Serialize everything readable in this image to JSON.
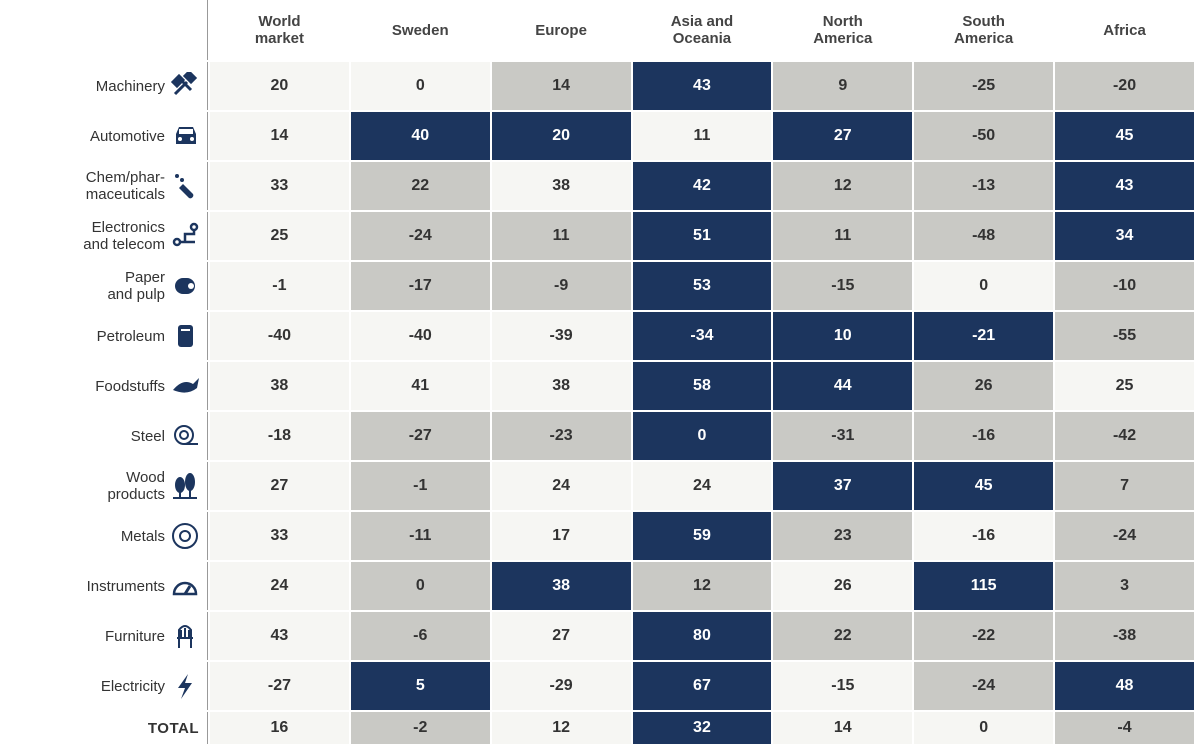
{
  "table": {
    "columns": [
      "World\nmarket",
      "Sweden",
      "Europe",
      "Asia and\nOceania",
      "North\nAmerica",
      "South\nAmerica",
      "Africa"
    ],
    "rows": [
      {
        "label": "Machinery",
        "values": [
          20,
          0,
          14,
          43,
          9,
          -25,
          -20
        ]
      },
      {
        "label": "Automotive",
        "values": [
          14,
          40,
          20,
          11,
          27,
          -50,
          45
        ]
      },
      {
        "label": "Chem/phar-\nmaceuticals",
        "values": [
          33,
          22,
          38,
          42,
          12,
          -13,
          43
        ]
      },
      {
        "label": "Electronics\nand telecom",
        "values": [
          25,
          -24,
          11,
          51,
          11,
          -48,
          34
        ]
      },
      {
        "label": "Paper\nand pulp",
        "values": [
          -1,
          -17,
          -9,
          53,
          -15,
          0,
          -10
        ]
      },
      {
        "label": "Petroleum",
        "values": [
          -40,
          -40,
          -39,
          -34,
          10,
          -21,
          -55
        ]
      },
      {
        "label": "Foodstuffs",
        "values": [
          38,
          41,
          38,
          58,
          44,
          26,
          25
        ]
      },
      {
        "label": "Steel",
        "values": [
          -18,
          -27,
          -23,
          0,
          -31,
          -16,
          -42
        ]
      },
      {
        "label": "Wood\nproducts",
        "values": [
          27,
          -1,
          24,
          24,
          37,
          45,
          7
        ]
      },
      {
        "label": "Metals",
        "values": [
          33,
          -11,
          17,
          59,
          23,
          -16,
          -24
        ]
      },
      {
        "label": "Instruments",
        "values": [
          24,
          0,
          38,
          12,
          26,
          115,
          3
        ]
      },
      {
        "label": "Furniture",
        "values": [
          43,
          -6,
          27,
          80,
          22,
          -22,
          -38
        ]
      },
      {
        "label": "Electricity",
        "values": [
          -27,
          5,
          -29,
          67,
          -15,
          -24,
          48
        ]
      },
      {
        "label": "TOTAL",
        "values": [
          16,
          -2,
          12,
          32,
          14,
          0,
          -4
        ]
      }
    ],
    "cell_colors": [
      [
        "#f6f6f3",
        "#f6f6f3",
        "#c9c9c5",
        "#1c355e",
        "#c9c9c5",
        "#c9c9c5",
        "#c9c9c5"
      ],
      [
        "#f6f6f3",
        "#1c355e",
        "#1c355e",
        "#f6f6f3",
        "#1c355e",
        "#c9c9c5",
        "#1c355e"
      ],
      [
        "#f6f6f3",
        "#c9c9c5",
        "#f6f6f3",
        "#1c355e",
        "#c9c9c5",
        "#c9c9c5",
        "#1c355e"
      ],
      [
        "#f6f6f3",
        "#c9c9c5",
        "#c9c9c5",
        "#1c355e",
        "#c9c9c5",
        "#c9c9c5",
        "#1c355e"
      ],
      [
        "#f6f6f3",
        "#c9c9c5",
        "#c9c9c5",
        "#1c355e",
        "#c9c9c5",
        "#f6f6f3",
        "#c9c9c5"
      ],
      [
        "#f6f6f3",
        "#f6f6f3",
        "#f6f6f3",
        "#1c355e",
        "#1c355e",
        "#1c355e",
        "#c9c9c5"
      ],
      [
        "#f6f6f3",
        "#f6f6f3",
        "#f6f6f3",
        "#1c355e",
        "#1c355e",
        "#c9c9c5",
        "#f6f6f3"
      ],
      [
        "#f6f6f3",
        "#c9c9c5",
        "#c9c9c5",
        "#1c355e",
        "#c9c9c5",
        "#c9c9c5",
        "#c9c9c5"
      ],
      [
        "#f6f6f3",
        "#c9c9c5",
        "#f6f6f3",
        "#f6f6f3",
        "#1c355e",
        "#1c355e",
        "#c9c9c5"
      ],
      [
        "#f6f6f3",
        "#c9c9c5",
        "#f6f6f3",
        "#1c355e",
        "#c9c9c5",
        "#f6f6f3",
        "#c9c9c5"
      ],
      [
        "#f6f6f3",
        "#c9c9c5",
        "#1c355e",
        "#c9c9c5",
        "#f6f6f3",
        "#1c355e",
        "#c9c9c5"
      ],
      [
        "#f6f6f3",
        "#c9c9c5",
        "#f6f6f3",
        "#1c355e",
        "#c9c9c5",
        "#c9c9c5",
        "#c9c9c5"
      ],
      [
        "#f6f6f3",
        "#1c355e",
        "#f6f6f3",
        "#1c355e",
        "#f6f6f3",
        "#c9c9c5",
        "#1c355e"
      ],
      [
        "#f6f6f3",
        "#c9c9c5",
        "#f6f6f3",
        "#1c355e",
        "#f6f6f3",
        "#f6f6f3",
        "#c9c9c5"
      ]
    ]
  }
}
